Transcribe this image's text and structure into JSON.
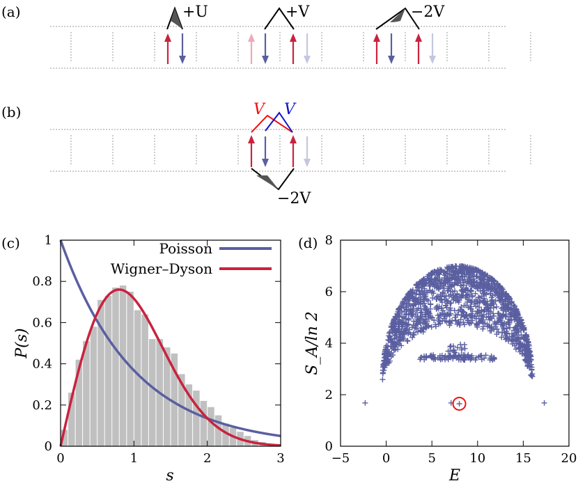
{
  "panels": {
    "a": "(a)",
    "b": "(b)",
    "c": "(c)",
    "d": "(d)"
  },
  "diagram_a": {
    "label_U": "+U",
    "label_V": "+V",
    "label_2V": "−2V"
  },
  "diagram_b": {
    "label_V_red": "V",
    "label_V_blue": "V",
    "label_2V": "−2V"
  },
  "colors": {
    "red": "#c8233f",
    "blue": "#5a5fa0",
    "pink": "#f0a8b8",
    "lightblue": "#c4c6e0",
    "gray_bar": "#c0c0c0",
    "red_label": "#ee1111",
    "blue_label": "#1111cc"
  },
  "chart_data": [
    {
      "type": "bar",
      "panel": "c",
      "xlabel": "s",
      "ylabel": "P(s)",
      "xlim": [
        0,
        3
      ],
      "ylim": [
        0,
        1
      ],
      "xticks": [
        "0",
        "1",
        "2",
        "3"
      ],
      "yticks": [
        "0",
        "0.2",
        "0.4",
        "0.6",
        "0.8",
        "1"
      ],
      "bin_width": 0.1,
      "histogram": [
        0.08,
        0.26,
        0.42,
        0.51,
        0.58,
        0.71,
        0.73,
        0.77,
        0.78,
        0.75,
        0.66,
        0.64,
        0.52,
        0.52,
        0.48,
        0.45,
        0.35,
        0.3,
        0.27,
        0.22,
        0.19,
        0.15,
        0.11,
        0.09,
        0.07,
        0.05,
        0.03,
        0.02
      ],
      "series": [
        {
          "name": "Poisson",
          "color": "#5a5fa0",
          "formula": "exp(-s)"
        },
        {
          "name": "Wigner–Dyson",
          "color": "#c8233f",
          "formula": "pi/2 s exp(-pi s^2/4)"
        }
      ]
    },
    {
      "type": "scatter",
      "panel": "d",
      "xlabel": "E",
      "ylabel": "S_A/ln 2",
      "xlim": [
        -5,
        20
      ],
      "ylim": [
        0,
        8
      ],
      "xticks": [
        "−5",
        "0",
        "5",
        "10",
        "15",
        "20"
      ],
      "yticks": [
        "0",
        "2",
        "4",
        "6",
        "8"
      ],
      "marker_color": "#5a5fa0",
      "highlight_color": "#ee1111",
      "isolated_points": [
        [
          -2.3,
          1.68
        ],
        [
          7.1,
          1.68
        ],
        [
          8.0,
          1.65
        ],
        [
          17.3,
          1.68
        ]
      ],
      "highlighted_point": [
        8.0,
        1.65
      ],
      "dome": {
        "center": 7.8,
        "half_width": 8.2,
        "top": 7.0,
        "base": 2.6
      },
      "inner_band": {
        "center": 7.8,
        "half_width": 4.2,
        "level": 3.45
      },
      "inner_cluster": {
        "center": 7.5,
        "level": 3.8
      }
    }
  ]
}
